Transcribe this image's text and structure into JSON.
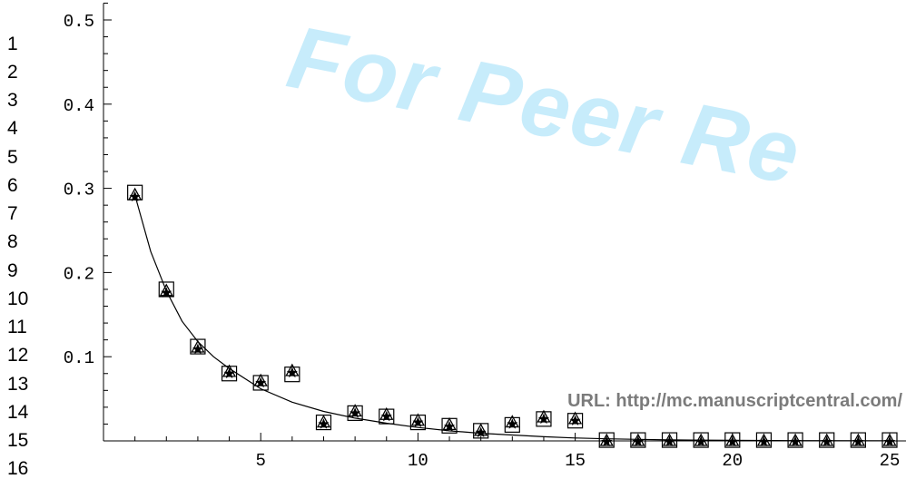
{
  "watermark": {
    "text": "For Peer Re",
    "color": "#c7ecfb"
  },
  "footer": {
    "url_text": "URL: http://mc.manuscriptcentral.com/"
  },
  "line_numbers": [
    "1",
    "2",
    "3",
    "4",
    "5",
    "6",
    "7",
    "8",
    "9",
    "10",
    "11",
    "12",
    "13",
    "14",
    "15",
    "16"
  ],
  "chart_data": {
    "type": "scatter",
    "title": "",
    "xlabel": "",
    "ylabel": "",
    "xlim": [
      0,
      25
    ],
    "ylim": [
      0,
      0.52
    ],
    "x_ticks": [
      5,
      10,
      15,
      20,
      25
    ],
    "x_tick_labels": [
      "5",
      "10",
      "15",
      "20",
      "25"
    ],
    "y_ticks": [
      0.1,
      0.2,
      0.3,
      0.4,
      0.5
    ],
    "y_tick_labels": [
      "0.1",
      "0.2",
      "0.3",
      "0.4",
      "0.5"
    ],
    "grid": false,
    "legend": "none",
    "series": [
      {
        "marker": "square",
        "x": [
          1,
          2,
          3,
          4,
          5,
          6,
          7,
          8,
          9,
          10,
          11,
          12,
          13,
          14,
          15,
          16,
          17,
          18,
          19,
          20,
          21,
          22,
          23,
          24,
          25
        ],
        "y": [
          0.295,
          0.18,
          0.112,
          0.08,
          0.069,
          0.079,
          0.022,
          0.033,
          0.029,
          0.022,
          0.018,
          0.012,
          0.019,
          0.026,
          0.024,
          0.001,
          0.001,
          0.001,
          0.001,
          0.001,
          0.001,
          0.001,
          0.001,
          0.001,
          0.001
        ]
      },
      {
        "marker": "triangle",
        "x": [
          1,
          2,
          3,
          4,
          5,
          6,
          7,
          8,
          9,
          10,
          11,
          12,
          13,
          14,
          15,
          16,
          17,
          18,
          19,
          20,
          21,
          22,
          23,
          24,
          25
        ],
        "y": [
          0.292,
          0.178,
          0.111,
          0.082,
          0.071,
          0.083,
          0.022,
          0.035,
          0.031,
          0.024,
          0.019,
          0.012,
          0.022,
          0.028,
          0.026,
          0.0,
          0.0,
          0.0,
          0.0,
          0.0,
          0.0,
          0.0,
          0.0,
          0.0,
          0.0
        ]
      },
      {
        "marker": "star",
        "x": [
          1,
          2,
          3,
          4,
          5,
          6,
          7,
          8,
          9,
          10,
          11,
          12,
          13,
          14,
          15,
          16,
          17,
          18,
          19,
          20,
          21,
          22,
          23,
          24,
          25
        ],
        "y": [
          0.291,
          0.177,
          0.11,
          0.081,
          0.07,
          0.082,
          0.021,
          0.034,
          0.03,
          0.023,
          0.018,
          0.011,
          0.021,
          0.027,
          0.025,
          0.0,
          0.0,
          0.0,
          0.0,
          0.0,
          0.0,
          0.0,
          0.0,
          0.0,
          0.0
        ]
      },
      {
        "type": "line",
        "x": [
          1,
          1.5,
          2,
          2.5,
          3,
          3.5,
          4,
          5,
          6,
          7,
          8,
          9,
          10,
          11,
          12,
          13,
          14,
          15,
          16,
          17,
          18,
          20,
          22,
          25
        ],
        "y": [
          0.292,
          0.225,
          0.178,
          0.142,
          0.118,
          0.1,
          0.086,
          0.062,
          0.046,
          0.035,
          0.027,
          0.021,
          0.016,
          0.012,
          0.009,
          0.007,
          0.005,
          0.0035,
          0.0025,
          0.0018,
          0.0012,
          0.0006,
          0.0003,
          0.0001
        ]
      }
    ]
  }
}
